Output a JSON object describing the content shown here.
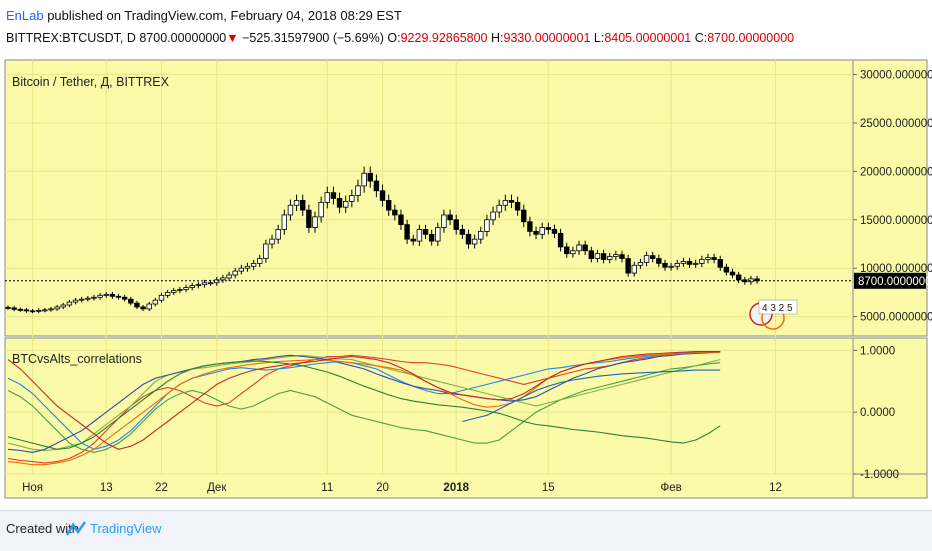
{
  "header": {
    "author": "EnLab",
    "published_text": " published on TradingView.com, February 04, 2018 08:29 EST"
  },
  "ohlc": {
    "symbol": "BITTREX:BTCUSDT, D",
    "last": "8700.00000000",
    "change": "−525.31597900 (−5.69%)",
    "open_label": "O:",
    "open": "9229.92865800",
    "high_label": "H:",
    "high": "9330.00000001",
    "low_label": "L:",
    "low": "8405.00000001",
    "close_label": "C:",
    "close": "8700.00000000"
  },
  "footer": {
    "created_with": "Created with",
    "brand": "TradingView"
  },
  "colors": {
    "panel_bg": "#fafaa8",
    "candle_up": "#ffffff",
    "candle_down": "#000000",
    "grid": "#e6e68a",
    "brand": "#2a9df4"
  },
  "chart_data": [
    {
      "type": "candlestick",
      "title": "Bitcoin / Tether, Д, BITTREX",
      "ylim": [
        3000,
        31500
      ],
      "y_ticks": [
        "30000.00000000",
        "25000.00000000",
        "20000.00000000",
        "15000.00000000",
        "10000.00000000",
        "5000.00000000"
      ],
      "y_tick_values": [
        30000,
        25000,
        20000,
        15000,
        10000,
        5000
      ],
      "last_price_label": "8700.00000000",
      "last_price": 8700,
      "badge_text": "4 3 2 5",
      "x_ticks": [
        "Ноя",
        "13",
        "22",
        "Дек",
        "11",
        "20",
        "2018",
        "15",
        "Фев",
        "12"
      ],
      "x_tick_days": [
        4,
        16,
        25,
        34,
        52,
        61,
        73,
        88,
        108,
        125
      ],
      "close": [
        5900,
        5750,
        5700,
        5600,
        5550,
        5650,
        5700,
        5800,
        6000,
        6200,
        6500,
        6700,
        6800,
        6900,
        7000,
        7200,
        7300,
        7100,
        7000,
        6800,
        6400,
        6000,
        5800,
        6300,
        6700,
        7200,
        7500,
        7700,
        7800,
        8000,
        8200,
        8300,
        8500,
        8500,
        8800,
        9000,
        9300,
        9700,
        10000,
        10200,
        10500,
        11000,
        12500,
        13000,
        14000,
        15500,
        16500,
        17000,
        16000,
        14200,
        15300,
        16800,
        17800,
        17200,
        16300,
        16900,
        17500,
        18500,
        19800,
        19000,
        18000,
        17000,
        16000,
        15500,
        14500,
        13000,
        12800,
        14000,
        13500,
        12800,
        14200,
        15500,
        15000,
        14000,
        13500,
        12500,
        13000,
        13800,
        15000,
        15800,
        16500,
        17000,
        16800,
        16000,
        14800,
        13800,
        13500,
        14200,
        14000,
        13600,
        12200,
        11500,
        11800,
        12400,
        11800,
        11000,
        11500,
        10900,
        11200,
        11400,
        11000,
        9500,
        10300,
        10600,
        11300,
        11000,
        10500,
        10100,
        10200,
        10500,
        10700,
        10400,
        10500,
        10900,
        11100,
        10900,
        10100,
        9600,
        9300,
        8800,
        8600,
        8900,
        8700
      ]
    },
    {
      "type": "line",
      "title": "BTCvsAlts_correlations",
      "ylim": [
        -1,
        1.2
      ],
      "y_ticks": [
        "1.0000",
        "0.0000",
        "-1.0000"
      ],
      "y_tick_values": [
        1,
        0,
        -1
      ],
      "series": [
        {
          "color": "#e53935",
          "values": [
            -0.75,
            -0.78,
            -0.8,
            -0.82,
            -0.8,
            -0.75,
            -0.65,
            -0.5,
            -0.3,
            -0.1,
            0.1,
            0.25,
            0.35,
            0.4,
            0.35,
            0.25,
            0.15,
            0.1,
            0.15,
            0.3,
            0.45,
            0.6,
            0.7,
            0.75,
            0.8,
            0.85,
            0.9,
            0.9,
            0.92,
            0.9,
            0.88,
            0.85,
            0.82,
            0.8,
            0.8,
            0.78,
            0.75,
            0.7,
            0.65,
            0.6,
            0.55,
            0.5,
            0.45,
            0.5,
            0.55,
            0.6,
            0.65,
            0.7,
            0.72,
            0.75,
            0.8,
            0.85,
            0.88,
            0.9,
            0.92,
            0.95,
            0.95,
            0.97,
            0.98
          ]
        },
        {
          "color": "#1e88e5",
          "values": [
            0.55,
            0.45,
            0.3,
            0.1,
            -0.1,
            -0.3,
            -0.5,
            -0.6,
            -0.55,
            -0.45,
            -0.3,
            -0.1,
            0.1,
            0.3,
            0.45,
            0.55,
            0.6,
            0.65,
            0.7,
            0.72,
            0.7,
            0.68,
            0.7,
            0.72,
            0.75,
            0.78,
            0.8,
            0.82,
            0.8,
            0.75,
            0.7,
            0.6,
            0.5,
            0.42,
            0.35,
            0.3,
            0.3,
            0.35,
            0.4,
            0.45,
            0.5,
            0.55,
            0.6,
            0.65,
            0.7,
            0.72,
            0.75,
            0.78,
            0.8,
            0.82,
            0.85,
            0.88,
            0.9,
            0.92,
            0.94,
            0.96,
            0.97,
            0.98,
            0.98
          ]
        },
        {
          "color": "#43a047",
          "values": [
            0.35,
            0.25,
            0.1,
            -0.1,
            -0.3,
            -0.5,
            -0.6,
            -0.65,
            -0.6,
            -0.5,
            -0.35,
            -0.15,
            0.05,
            0.2,
            0.3,
            0.35,
            0.3,
            0.2,
            0.1,
            0.05,
            0.1,
            0.2,
            0.3,
            0.35,
            0.3,
            0.25,
            0.15,
            0.05,
            -0.05,
            -0.1,
            -0.15,
            -0.2,
            -0.25,
            -0.28,
            -0.3,
            -0.35,
            -0.4,
            -0.45,
            -0.5,
            -0.5,
            -0.45,
            -0.3,
            -0.15,
            0.0,
            0.1,
            0.2,
            0.28,
            0.35,
            0.4,
            0.45,
            0.5,
            0.55,
            0.6,
            0.65,
            0.7,
            0.72,
            0.75,
            0.78,
            0.8
          ]
        },
        {
          "color": "#7cb342",
          "values": [
            -0.5,
            -0.55,
            -0.6,
            -0.62,
            -0.6,
            -0.55,
            -0.5,
            -0.35,
            -0.2,
            -0.05,
            0.1,
            0.3,
            0.5,
            0.6,
            0.65,
            0.7,
            0.72,
            0.75,
            0.78,
            0.8,
            0.82,
            0.85,
            0.88,
            0.9,
            0.92,
            0.9,
            0.88,
            0.86,
            0.85,
            0.8,
            0.75,
            0.7,
            0.65,
            0.6,
            0.55,
            0.5,
            0.45,
            0.4,
            0.35,
            0.3,
            0.25,
            0.2,
            0.15,
            0.1,
            0.15,
            0.2,
            0.25,
            0.3,
            0.35,
            0.4,
            0.45,
            0.5,
            0.55,
            0.6,
            0.65,
            0.7,
            0.75,
            0.8,
            0.85
          ]
        },
        {
          "color": "#3949ab",
          "values": [
            -0.6,
            -0.62,
            -0.65,
            -0.6,
            -0.5,
            -0.4,
            -0.3,
            -0.15,
            0.0,
            0.15,
            0.3,
            0.45,
            0.55,
            0.6,
            0.65,
            0.7,
            0.75,
            0.78,
            0.8,
            0.82,
            0.85,
            0.87,
            0.9,
            0.92,
            0.9,
            0.88,
            0.85,
            0.8,
            0.75,
            0.7,
            0.62,
            0.55,
            0.48,
            0.42,
            0.38,
            0.35,
            0.3,
            0.28,
            0.25,
            0.22,
            0.2,
            0.18,
            0.2,
            0.25,
            0.35,
            0.45,
            0.55,
            0.62,
            0.7,
            0.75,
            0.8,
            0.83,
            0.86,
            0.9,
            0.92,
            0.94,
            0.95,
            0.96,
            0.97
          ]
        },
        {
          "color": "#ef6c00",
          "values": [
            -0.8,
            -0.82,
            -0.85,
            -0.85,
            -0.82,
            -0.78,
            -0.7,
            -0.6,
            -0.45,
            -0.3,
            -0.15,
            0.0,
            0.15,
            0.3,
            0.45,
            0.55,
            0.62,
            0.68,
            0.72,
            0.75,
            0.78,
            0.8,
            0.82,
            0.83,
            0.84,
            0.85,
            0.84,
            0.82,
            0.8,
            0.78,
            0.75,
            0.72,
            0.68,
            0.6,
            0.5,
            0.4,
            0.3,
            0.2,
            0.12,
            0.08,
            0.1,
            0.15,
            0.25,
            0.4,
            0.55,
            0.65,
            0.72,
            0.78,
            0.82,
            0.85,
            0.88,
            0.9,
            0.92,
            0.93,
            0.94,
            0.95,
            0.96,
            0.97,
            0.97
          ]
        },
        {
          "color": "#2e7d32",
          "values": [
            -0.4,
            -0.45,
            -0.5,
            -0.55,
            -0.6,
            -0.58,
            -0.5,
            -0.4,
            -0.25,
            -0.1,
            0.05,
            0.2,
            0.35,
            0.5,
            0.62,
            0.7,
            0.75,
            0.78,
            0.8,
            0.82,
            0.83,
            0.82,
            0.8,
            0.78,
            0.75,
            0.7,
            0.65,
            0.58,
            0.5,
            0.42,
            0.35,
            0.28,
            0.22,
            0.18,
            0.15,
            0.12,
            0.1,
            0.08,
            0.05,
            0.02,
            -0.02,
            -0.08,
            -0.15,
            -0.2,
            -0.22,
            -0.25,
            -0.28,
            -0.3,
            -0.32,
            -0.35,
            -0.38,
            -0.4,
            -0.42,
            -0.45,
            -0.48,
            -0.5,
            -0.45,
            -0.35,
            -0.22
          ]
        },
        {
          "color": "#c62828",
          "values": [
            0.85,
            0.7,
            0.5,
            0.3,
            0.1,
            -0.05,
            -0.2,
            -0.35,
            -0.5,
            -0.6,
            -0.55,
            -0.45,
            -0.3,
            -0.15,
            0.0,
            0.15,
            0.3,
            0.45,
            0.55,
            0.62,
            0.68,
            0.72,
            0.75,
            0.78,
            0.8,
            0.82,
            0.85,
            0.88,
            0.9,
            0.88,
            0.85,
            0.8,
            0.72,
            0.62,
            0.5,
            0.4,
            0.32,
            0.28,
            0.25,
            0.22,
            0.2,
            0.22,
            0.3,
            0.42,
            0.55,
            0.65,
            0.72,
            0.78,
            0.82,
            0.86,
            0.9,
            0.92,
            0.94,
            0.95,
            0.96,
            0.97,
            0.98,
            0.98,
            0.98
          ]
        },
        {
          "color": "#1565c0",
          "values": [
            null,
            null,
            null,
            null,
            null,
            null,
            null,
            null,
            null,
            null,
            null,
            null,
            null,
            null,
            null,
            null,
            null,
            null,
            null,
            null,
            null,
            null,
            null,
            null,
            null,
            null,
            null,
            null,
            null,
            null,
            null,
            null,
            null,
            null,
            null,
            null,
            null,
            -0.15,
            -0.1,
            -0.05,
            0.05,
            0.15,
            0.25,
            0.35,
            0.42,
            0.48,
            0.52,
            0.55,
            0.58,
            0.6,
            0.62,
            0.63,
            0.64,
            0.65,
            0.66,
            0.67,
            0.68,
            0.68,
            0.68
          ]
        }
      ]
    }
  ]
}
